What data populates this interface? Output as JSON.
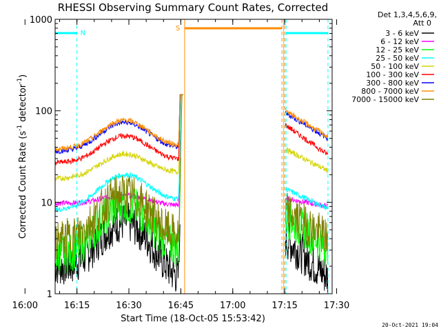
{
  "chart_data": {
    "type": "line",
    "title": "RHESSI Observing Summary Count Rates, Corrected",
    "xlabel": "Start Time (18-Oct-05 15:53:42)",
    "ylabel": "Corrected Count Rate (s",
    "ylabel_sup1": "-1",
    "ylabel_mid": " detector",
    "ylabel_sup2": "-1",
    "ylabel_end": ")",
    "yscale": "log",
    "ylim": [
      1,
      1000
    ],
    "xlim_minutes": [
      15.0,
      95.0
    ],
    "x_ticks": [
      {
        "label": "16:00",
        "min": 6.3
      },
      {
        "label": "16:15",
        "min": 21.3
      },
      {
        "label": "16:30",
        "min": 36.3
      },
      {
        "label": "16:45",
        "min": 51.3
      },
      {
        "label": "17:00",
        "min": 66.3
      },
      {
        "label": "17:15",
        "min": 81.3
      },
      {
        "label": "17:30",
        "min": 96.3
      }
    ],
    "y_ticks": [
      {
        "label": "1",
        "v": 1
      },
      {
        "label": "10",
        "v": 10
      },
      {
        "label": "100",
        "v": 100
      },
      {
        "label": "1000",
        "v": 1000
      }
    ],
    "legend_header": [
      "Det 1,3,4,5,6,9,",
      "Att 0"
    ],
    "legend_placement": "right",
    "series": [
      {
        "name": "3 - 6 keV",
        "color": "#000000",
        "base1": 1.8,
        "peak1": 6.2,
        "start1": 2.0,
        "end1": 1.4,
        "start2": 4.0,
        "end2": 1.5
      },
      {
        "name": "6 - 12 keV",
        "color": "#ff00ff",
        "base1": 9.5,
        "peak1": 12.0,
        "start1": 9.8,
        "end1": 9.2,
        "start2": 11.0,
        "end2": 9.0
      },
      {
        "name": "12 - 25 keV",
        "color": "#00ff00",
        "base1": 2.8,
        "peak1": 9.5,
        "start1": 2.6,
        "end1": 2.9,
        "start2": 7.0,
        "end2": 3.2
      },
      {
        "name": "25 - 50 keV",
        "color": "#00ffff",
        "base1": 8.5,
        "peak1": 19.0,
        "start1": 8.2,
        "end1": 10.5,
        "start2": 14.0,
        "end2": 8.5
      },
      {
        "name": "50 - 100 keV",
        "color": "#d4d400",
        "base1": 18.0,
        "peak1": 32.0,
        "start1": 18.0,
        "end1": 21.0,
        "start2": 38.0,
        "end2": 22.0
      },
      {
        "name": "100 - 300 keV",
        "color": "#ff0000",
        "base1": 27.0,
        "peak1": 52.0,
        "start1": 27.0,
        "end1": 29.0,
        "start2": 70.0,
        "end2": 33.0
      },
      {
        "name": "300 - 800 keV",
        "color": "#0000ff",
        "base1": 36.0,
        "peak1": 73.0,
        "start1": 36.0,
        "end1": 39.0,
        "start2": 95.0,
        "end2": 50.0
      },
      {
        "name": "800 - 7000 keV",
        "color": "#ff8c00",
        "base1": 38.0,
        "peak1": 77.0,
        "start1": 38.0,
        "end1": 41.0,
        "start2": 100.0,
        "end2": 52.0
      },
      {
        "name": "7000 - 15000 keV",
        "color": "#808000",
        "base1": 4.0,
        "peak1": 12.5,
        "start1": 3.8,
        "end1": 3.9,
        "start2": 8.0,
        "end2": 4.0
      }
    ],
    "segments": {
      "first": [
        15.0,
        50.7
      ],
      "second": [
        81.5,
        93.8
      ],
      "peak_min": 35.0
    },
    "annotations": {
      "N": {
        "label": "N",
        "color": "#00ffff",
        "bars": [
          [
            15.0,
            21.3
          ],
          [
            81.7,
            93.8
          ]
        ],
        "lines": [
          15.0,
          21.3,
          81.7,
          93.8
        ]
      },
      "S": {
        "label": "S",
        "color": "#ff8c00",
        "bar": [
          52.4,
          80.5
        ],
        "lines": [
          52.4,
          80.5,
          81.3
        ]
      }
    },
    "grid": false
  },
  "stamp": "20-Oct-2021 19:04"
}
